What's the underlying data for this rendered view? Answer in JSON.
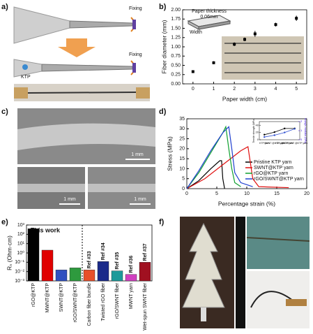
{
  "panel_labels": [
    "a)",
    "b)",
    "c)",
    "d)",
    "e)",
    "f)"
  ],
  "diagram_a": {
    "labels": [
      "Fixing",
      "Fixing",
      "KTP"
    ]
  },
  "sem_c": {
    "scale_bars": [
      "1 mm",
      "1 mm",
      "1 mm"
    ]
  },
  "chart_data": [
    {
      "type": "scatter",
      "x_label": "Paper width (cm)",
      "y_label": "Fiber diameter (mm)",
      "x": [
        0,
        1,
        2,
        2.5,
        3,
        4,
        5
      ],
      "values": [
        0.33,
        0.57,
        1.07,
        1.2,
        1.35,
        1.6,
        1.77
      ],
      "errors": [
        0.03,
        0.04,
        0.05,
        0.05,
        0.08,
        0.05,
        0.07
      ],
      "color": "#000000",
      "xlim": [
        -0.5,
        5.5
      ],
      "xticks": [
        0,
        1,
        2,
        3,
        4,
        5
      ],
      "ylim": [
        0,
        2
      ],
      "yticks": [
        {
          "value": 0,
          "label": "0.00"
        },
        {
          "value": 0.25,
          "label": "0.25"
        },
        {
          "value": 0.5,
          "label": "0.50"
        },
        {
          "value": 0.75,
          "label": "0.75"
        },
        {
          "value": 1,
          "label": "1.00"
        },
        {
          "value": 1.25,
          "label": "1.25"
        },
        {
          "value": 1.5,
          "label": "1.50"
        },
        {
          "value": 1.75,
          "label": "1.75"
        },
        {
          "value": 2,
          "label": "2.00"
        }
      ],
      "inset": {
        "title": "Paper thickness",
        "thickness": "0.06mm",
        "width_label": "Width"
      }
    },
    {
      "type": "line",
      "x_label": "Percentage strain (%)",
      "y_label": "Stress (MPa)",
      "xlim": [
        0,
        20
      ],
      "xticks": [
        0,
        5,
        10,
        15,
        20
      ],
      "ylim": [
        0,
        35
      ],
      "yticks": [
        0,
        5,
        10,
        15,
        20,
        25,
        30,
        35
      ],
      "series": [
        {
          "name": "Pristine KTP yarn",
          "color": "#000000",
          "x": [
            0,
            2,
            4,
            5.5,
            5.8,
            6,
            6.3
          ],
          "values": [
            0,
            4,
            10,
            14,
            14,
            5,
            0
          ]
        },
        {
          "name": "SWNT@KTP yarn",
          "color": "#e01010",
          "x": [
            0,
            3,
            6,
            9,
            10.2,
            11,
            12,
            17
          ],
          "values": [
            0,
            5,
            12,
            19,
            21,
            5,
            1,
            0.5
          ]
        },
        {
          "name": "rGO@KTP yarn",
          "color": "#10a030",
          "x": [
            0,
            2,
            4,
            6,
            6.5,
            7,
            7.5,
            8,
            9
          ],
          "values": [
            0,
            8,
            18,
            28,
            31,
            20,
            10,
            3,
            1
          ]
        },
        {
          "name": "rGO/SWNT@KTP yarn",
          "color": "#2040d0",
          "x": [
            0,
            2,
            4,
            6,
            7,
            7.5,
            8,
            9,
            10,
            11
          ],
          "values": [
            0,
            9,
            19,
            28,
            31,
            20,
            8,
            3,
            2,
            1
          ]
        }
      ],
      "inset": {
        "categories": [
          "KTP yarn",
          "SWNT @KTP yarn",
          "rGO @KTP yarn",
          "rGO/SWNT @KTP yarn"
        ],
        "y_label": "Tensile strength (MPa)",
        "y2_label": "Young's modulus (GPa)",
        "ylim": [
          0,
          50
        ],
        "yticks": [
          0,
          20,
          40
        ],
        "y2lim": [
          0,
          2
        ],
        "y2ticks": [
          0,
          1,
          2
        ],
        "series": [
          {
            "name": "Tensile strength (MPa)",
            "color": "#000000",
            "values": [
              14,
              21,
              31,
              31
            ]
          },
          {
            "name": "Young's modulus (GPa)",
            "color": "#3050d0",
            "axis": "y2",
            "values": [
              0.3,
              0.5,
              0.8,
              1.2
            ]
          }
        ]
      }
    },
    {
      "type": "bar",
      "y_label": "Rₛ (Ohm·cm)",
      "log_scale": true,
      "annotation": "This work",
      "categories": [
        "rGO@KTP",
        "MWNT@KTP",
        "SWNT@KTP",
        "rGO/SWNT@KTP",
        "Carbon fiber bundle",
        "Twisted rGO fiber",
        "rGO/SWNT fiber",
        "MWNT yarn",
        "Wet-spun SWNT fiber"
      ],
      "values": [
        400,
        2,
        0.015,
        0.025,
        0.015,
        0.12,
        0.012,
        0.005,
        0.1
      ],
      "colors": [
        "#000000",
        "#e00000",
        "#3050c0",
        "#2e9a3e",
        "#e8502a",
        "#1a2a8a",
        "#1c9a9a",
        "#d040c0",
        "#a01020"
      ],
      "ref_labels": [
        null,
        null,
        null,
        null,
        "Ref #33",
        "Ref #34",
        "Ref #35",
        "Ref #36",
        "Ref #37"
      ],
      "ylim": [
        0.001,
        1000
      ],
      "yticks": [
        {
          "value": 0.001,
          "label": "10⁻³"
        },
        {
          "value": 0.01,
          "label": "10⁻²"
        },
        {
          "value": 0.1,
          "label": "10⁻¹"
        },
        {
          "value": 1,
          "label": "10⁰"
        },
        {
          "value": 10,
          "label": "10¹"
        },
        {
          "value": 100,
          "label": "10²"
        },
        {
          "value": 1000,
          "label": "10³"
        }
      ]
    }
  ]
}
